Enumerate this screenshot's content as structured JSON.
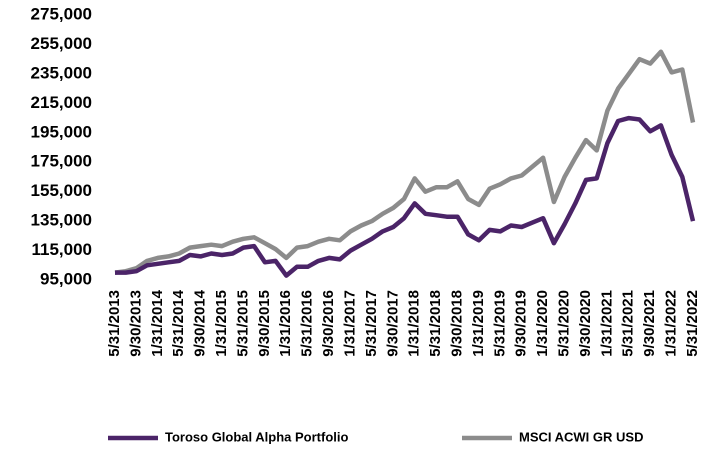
{
  "chart_data": {
    "type": "line",
    "categories": [
      "5/31/2013",
      null,
      "9/30/2013",
      null,
      "1/31/2014",
      null,
      "5/31/2014",
      null,
      "9/30/2014",
      null,
      "1/31/2015",
      null,
      "5/31/2015",
      null,
      "9/30/2015",
      null,
      "1/31/2016",
      null,
      "5/31/2016",
      null,
      "9/30/2016",
      null,
      "1/31/2017",
      null,
      "5/31/2017",
      null,
      "9/30/2017",
      null,
      "1/31/2018",
      null,
      "5/31/2018",
      null,
      "9/30/2018",
      null,
      "1/31/2019",
      null,
      "5/31/2019",
      null,
      "9/30/2019",
      null,
      "1/31/2020",
      null,
      "5/31/2020",
      null,
      "9/30/2020",
      null,
      "1/31/2021",
      null,
      "5/31/2021",
      null,
      "9/30/2021",
      null,
      "1/31/2022",
      null,
      "5/31/2022"
    ],
    "series": [
      {
        "name": "Toroso Global Alpha Portfolio",
        "color": "#4b2468",
        "values": [
          100000,
          100000,
          101000,
          105000,
          106000,
          107000,
          108000,
          112000,
          111000,
          113000,
          112000,
          113000,
          117000,
          118000,
          107000,
          108000,
          98000,
          104000,
          104000,
          108000,
          110000,
          109000,
          115000,
          119000,
          123000,
          128000,
          131000,
          137000,
          147000,
          140000,
          139000,
          138000,
          138000,
          126000,
          122000,
          129000,
          128000,
          132000,
          131000,
          134000,
          137000,
          120000,
          133000,
          147000,
          163000,
          164000,
          188000,
          203000,
          205000,
          204000,
          196000,
          200000,
          180000,
          165000,
          135000
        ]
      },
      {
        "name": "MSCI ACWI GR USD",
        "color": "#8c8c8c",
        "values": [
          100000,
          101000,
          103000,
          108000,
          110000,
          111000,
          113000,
          117000,
          118000,
          119000,
          118000,
          121000,
          123000,
          124000,
          120000,
          116000,
          110000,
          117000,
          118000,
          121000,
          123000,
          122000,
          128000,
          132000,
          135000,
          140000,
          144000,
          150000,
          164000,
          155000,
          158000,
          158000,
          162000,
          150000,
          146000,
          157000,
          160000,
          164000,
          166000,
          172000,
          178000,
          148000,
          165000,
          178000,
          190000,
          183000,
          210000,
          225000,
          235000,
          245000,
          242000,
          250000,
          236000,
          238000,
          202000
        ]
      }
    ],
    "ylim": [
      95000,
      275000
    ],
    "yticks": [
      {
        "value": 95000,
        "label": "95,000"
      },
      {
        "value": 115000,
        "label": "115,000"
      },
      {
        "value": 135000,
        "label": "135,000"
      },
      {
        "value": 155000,
        "label": "155,000"
      },
      {
        "value": 175000,
        "label": "175,000"
      },
      {
        "value": 195000,
        "label": "195,000"
      },
      {
        "value": 215000,
        "label": "215,000"
      },
      {
        "value": 235000,
        "label": "235,000"
      },
      {
        "value": 255000,
        "label": "255,000"
      },
      {
        "value": 275000,
        "label": "275,000"
      }
    ],
    "grid": false,
    "legend": "bottom"
  }
}
